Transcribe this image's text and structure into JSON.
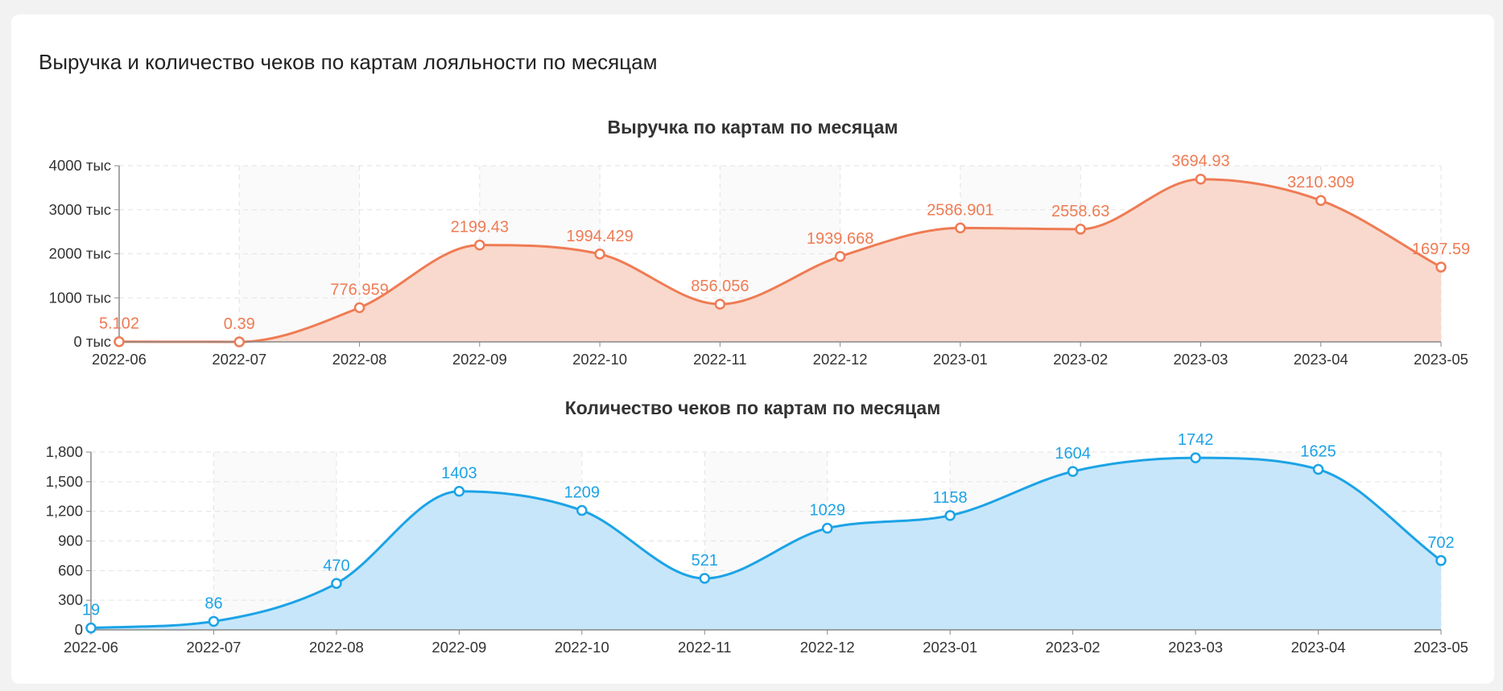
{
  "page_title": "Выручка и количество чеков по картам лояльности по месяцам",
  "colors": {
    "revenue": "#ef7b54",
    "revenue_fill": "#f9d9cd",
    "checks": "#1ca3e6",
    "checks_fill": "#c7e6f9"
  },
  "chart_data": [
    {
      "type": "area",
      "title": "Выручка по картам по месяцам",
      "xlabel": "",
      "ylabel": "",
      "categories": [
        "2022-06",
        "2022-07",
        "2022-08",
        "2022-09",
        "2022-10",
        "2022-11",
        "2022-12",
        "2023-01",
        "2023-02",
        "2023-03",
        "2023-04",
        "2023-05"
      ],
      "values": [
        5.102,
        0.39,
        776.959,
        2199.43,
        1994.429,
        856.056,
        1939.668,
        2586.901,
        2558.63,
        3694.93,
        3210.309,
        1697.59
      ],
      "data_labels": [
        "5.102",
        "0.39",
        "776.959",
        "2199.43",
        "1994.429",
        "856.056",
        "1939.668",
        "2586.901",
        "2558.63",
        "3694.93",
        "3210.309",
        "1697.59"
      ],
      "y_ticks": [
        0,
        1000,
        2000,
        3000,
        4000
      ],
      "y_tick_labels": [
        "0 тыс",
        "1000 тыс",
        "2000 тыс",
        "3000 тыс",
        "4000 тыс"
      ],
      "ylim": [
        0,
        4000
      ],
      "grid": true,
      "smooth": true
    },
    {
      "type": "area",
      "title": "Количество чеков по картам по месяцам",
      "xlabel": "",
      "ylabel": "",
      "categories": [
        "2022-06",
        "2022-07",
        "2022-08",
        "2022-09",
        "2022-10",
        "2022-11",
        "2022-12",
        "2023-01",
        "2023-02",
        "2023-03",
        "2023-04",
        "2023-05"
      ],
      "values": [
        19,
        86,
        470,
        1403,
        1209,
        521,
        1029,
        1158,
        1604,
        1742,
        1625,
        702
      ],
      "data_labels": [
        "19",
        "86",
        "470",
        "1403",
        "1209",
        "521",
        "1029",
        "1158",
        "1604",
        "1742",
        "1625",
        "702"
      ],
      "y_ticks": [
        0,
        300,
        600,
        900,
        1200,
        1500,
        1800
      ],
      "y_tick_labels": [
        "0",
        "300",
        "600",
        "900",
        "1,200",
        "1,500",
        "1,800"
      ],
      "ylim": [
        0,
        1800
      ],
      "grid": true,
      "smooth": true
    }
  ]
}
